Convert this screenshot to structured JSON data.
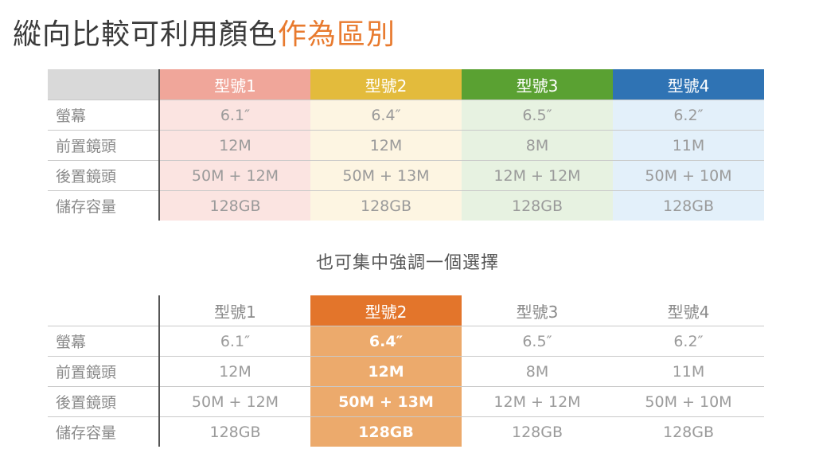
{
  "title": {
    "main": "縱向比較可利用顏色",
    "accent": "作為區別"
  },
  "subtitle": "也可集中強調一個選擇",
  "colors": {
    "model1_head": "#f0a69a",
    "model1_body": "#fbe4e1",
    "model2_head": "#e3bb3c",
    "model2_body": "#fdf5e2",
    "model3_head": "#5aa132",
    "model3_body": "#e7f2e1",
    "model4_head": "#2f73b4",
    "model4_body": "#e3f0fa",
    "highlight_head": "#e3752b",
    "highlight_body": "#ecaa6c"
  },
  "table": {
    "models": [
      "型號1",
      "型號2",
      "型號3",
      "型號4"
    ],
    "rows": [
      {
        "label": "螢幕",
        "values": [
          "6.1″",
          "6.4″",
          "6.5″",
          "6.2″"
        ]
      },
      {
        "label": "前置鏡頭",
        "values": [
          "12M",
          "12M",
          "8M",
          "11M"
        ]
      },
      {
        "label": "後置鏡頭",
        "values": [
          "50M + 12M",
          "50M + 13M",
          "12M + 12M",
          "50M + 10M"
        ]
      },
      {
        "label": "儲存容量",
        "values": [
          "128GB",
          "128GB",
          "128GB",
          "128GB"
        ]
      }
    ]
  }
}
